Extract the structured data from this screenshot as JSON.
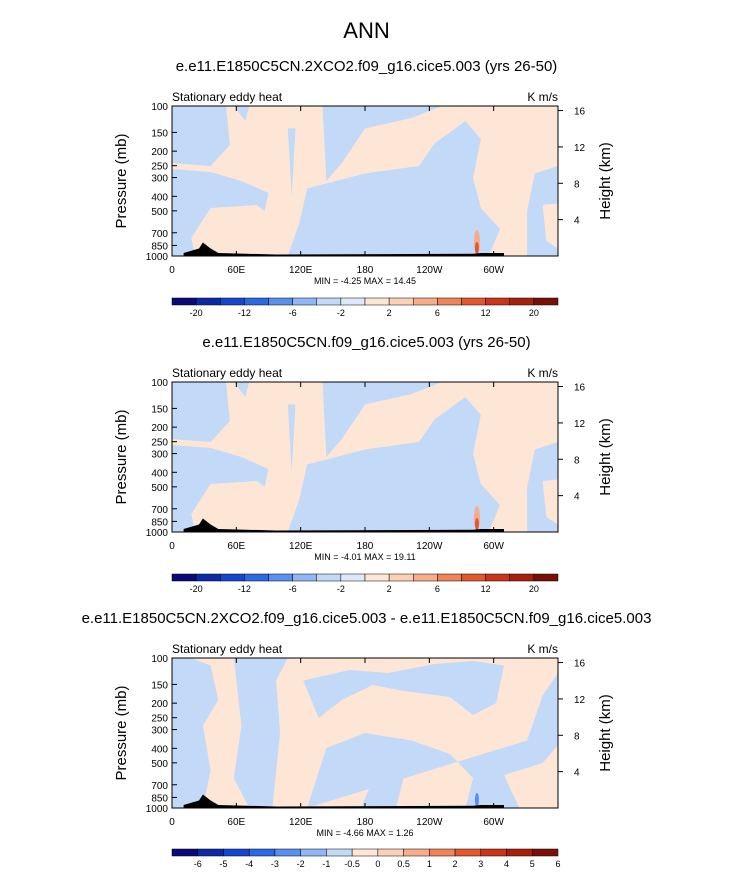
{
  "figure_title": "ANN",
  "palette": [
    "#0a0a78",
    "#0c2aa8",
    "#1646cc",
    "#2d68e6",
    "#5a8ff0",
    "#8fb6f5",
    "#c3d9f8",
    "#dde9fb",
    "#fde6d6",
    "#fcd0b6",
    "#f7ad8a",
    "#f08459",
    "#e3572f",
    "#c9341b",
    "#a7200f",
    "#7a0f08"
  ],
  "chart_data": [
    {
      "type": "heatmap",
      "title": "e.e11.E1850C5CN.2XCO2.f09_g16.cice5.003 (yrs 26-50)",
      "left_label": "Stationary eddy heat",
      "right_label": "K m/s",
      "ylabel": "Pressure (mb)",
      "ylabel_right": "Height (km)",
      "x_ticks": [
        "0",
        "60E",
        "120E",
        "180",
        "120W",
        "60W"
      ],
      "y_ticks": [
        "100",
        "150",
        "200",
        "250",
        "300",
        "400",
        "500",
        "700",
        "850",
        "1000"
      ],
      "height_ticks": [
        "4",
        "8",
        "12",
        "16"
      ],
      "stats": "MIN =  -4.25  MAX =  14.45",
      "colorbar_labels": [
        "-20",
        "-12",
        "-6",
        "-2",
        "2",
        "6",
        "12",
        "20"
      ],
      "min": -4.25,
      "max": 14.45
    },
    {
      "type": "heatmap",
      "title": "e.e11.E1850C5CN.f09_g16.cice5.003 (yrs 26-50)",
      "left_label": "Stationary eddy heat",
      "right_label": "K m/s",
      "ylabel": "Pressure (mb)",
      "ylabel_right": "Height (km)",
      "x_ticks": [
        "0",
        "60E",
        "120E",
        "180",
        "120W",
        "60W"
      ],
      "y_ticks": [
        "100",
        "150",
        "200",
        "250",
        "300",
        "400",
        "500",
        "700",
        "850",
        "1000"
      ],
      "height_ticks": [
        "4",
        "8",
        "12",
        "16"
      ],
      "stats": "MIN =  -4.01  MAX =  19.11",
      "colorbar_labels": [
        "-20",
        "-12",
        "-6",
        "-2",
        "2",
        "6",
        "12",
        "20"
      ],
      "min": -4.01,
      "max": 19.11
    },
    {
      "type": "heatmap",
      "title": "e.e11.E1850C5CN.2XCO2.f09_g16.cice5.003 - e.e11.E1850C5CN.f09_g16.cice5.003",
      "left_label": "Stationary eddy heat",
      "right_label": "K m/s",
      "ylabel": "Pressure (mb)",
      "ylabel_right": "Height (km)",
      "x_ticks": [
        "0",
        "60E",
        "120E",
        "180",
        "120W",
        "60W"
      ],
      "y_ticks": [
        "100",
        "150",
        "200",
        "250",
        "300",
        "400",
        "500",
        "700",
        "850",
        "1000"
      ],
      "height_ticks": [
        "4",
        "8",
        "12",
        "16"
      ],
      "stats": "MIN =  -4.66  MAX =  1.26",
      "colorbar_labels": [
        "-6",
        "-5",
        "-4",
        "-3",
        "-2",
        "-1",
        "-0.5",
        "0",
        "0.5",
        "1",
        "2",
        "3",
        "4",
        "5",
        "6"
      ],
      "min": -4.66,
      "max": 1.26
    }
  ]
}
